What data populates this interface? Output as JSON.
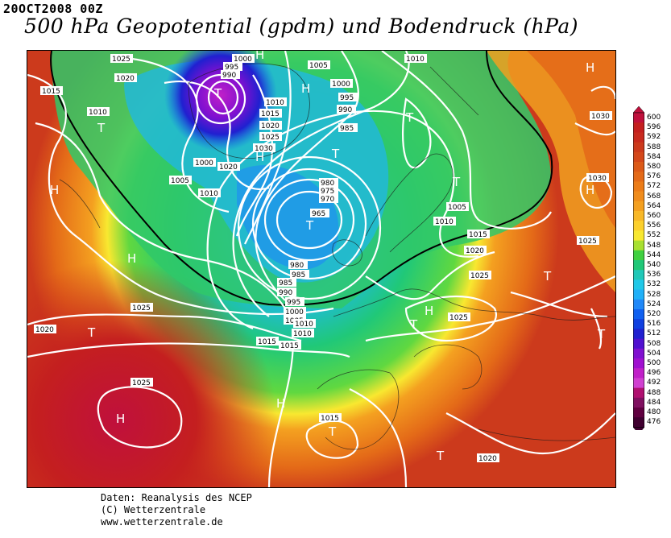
{
  "header": {
    "datestamp": "20OCT2008 00Z",
    "title": "500 hPa Geopotential (gpdm) und Bodendruck (hPa)"
  },
  "credits": {
    "line1": "Daten: Reanalysis des NCEP",
    "line2": "(C) Wetterzentrale",
    "line3": "www.wetterzentrale.de"
  },
  "colorbar": {
    "labels": [
      "600",
      "596",
      "592",
      "588",
      "584",
      "580",
      "576",
      "572",
      "568",
      "564",
      "560",
      "556",
      "552",
      "548",
      "544",
      "540",
      "536",
      "532",
      "528",
      "524",
      "520",
      "516",
      "512",
      "508",
      "504",
      "500",
      "496",
      "492",
      "488",
      "484",
      "480",
      "476"
    ],
    "colors": [
      "#c0103c",
      "#c41f1f",
      "#c82a1e",
      "#cc3a1c",
      "#d4481a",
      "#dc5a18",
      "#e46a18",
      "#ec7c18",
      "#f08c1c",
      "#f4a020",
      "#f8b828",
      "#fcd02c",
      "#f8e830",
      "#a8e030",
      "#40d040",
      "#20c878",
      "#20c8b8",
      "#20c8e8",
      "#20b0f8",
      "#2088f8",
      "#1060f0",
      "#1040e0",
      "#2020d0",
      "#5010d0",
      "#8010d0",
      "#a010d0",
      "#c020c8",
      "#d040d0",
      "#b01070",
      "#801060",
      "#600040",
      "#400030"
    ]
  },
  "pressure_labels": [
    "1025",
    "1020",
    "1015",
    "1010",
    "1000",
    "995",
    "990",
    "1005",
    "1000",
    "1010",
    "1010",
    "995",
    "990",
    "985",
    "1015",
    "1020",
    "1025",
    "1030",
    "1000",
    "1020",
    "1005",
    "1010",
    "980",
    "975",
    "970",
    "965",
    "985",
    "980",
    "985",
    "990",
    "995",
    "1000",
    "1005",
    "1010",
    "1015",
    "1010",
    "1005",
    "1015",
    "1020",
    "1025",
    "1030",
    "1025",
    "1030",
    "1025",
    "1025",
    "1020",
    "1025",
    "1020",
    "1015",
    "1020",
    "1015",
    "1000",
    "1005",
    "1010"
  ],
  "centers": [
    "T",
    "H",
    "H",
    "T",
    "T",
    "H",
    "T",
    "T",
    "T",
    "H",
    "H",
    "T",
    "H",
    "T",
    "T",
    "H",
    "T",
    "T",
    "H",
    "H",
    "T",
    "T"
  ],
  "colors": {
    "contour": "#ffffff",
    "trough_line": "#000000"
  }
}
